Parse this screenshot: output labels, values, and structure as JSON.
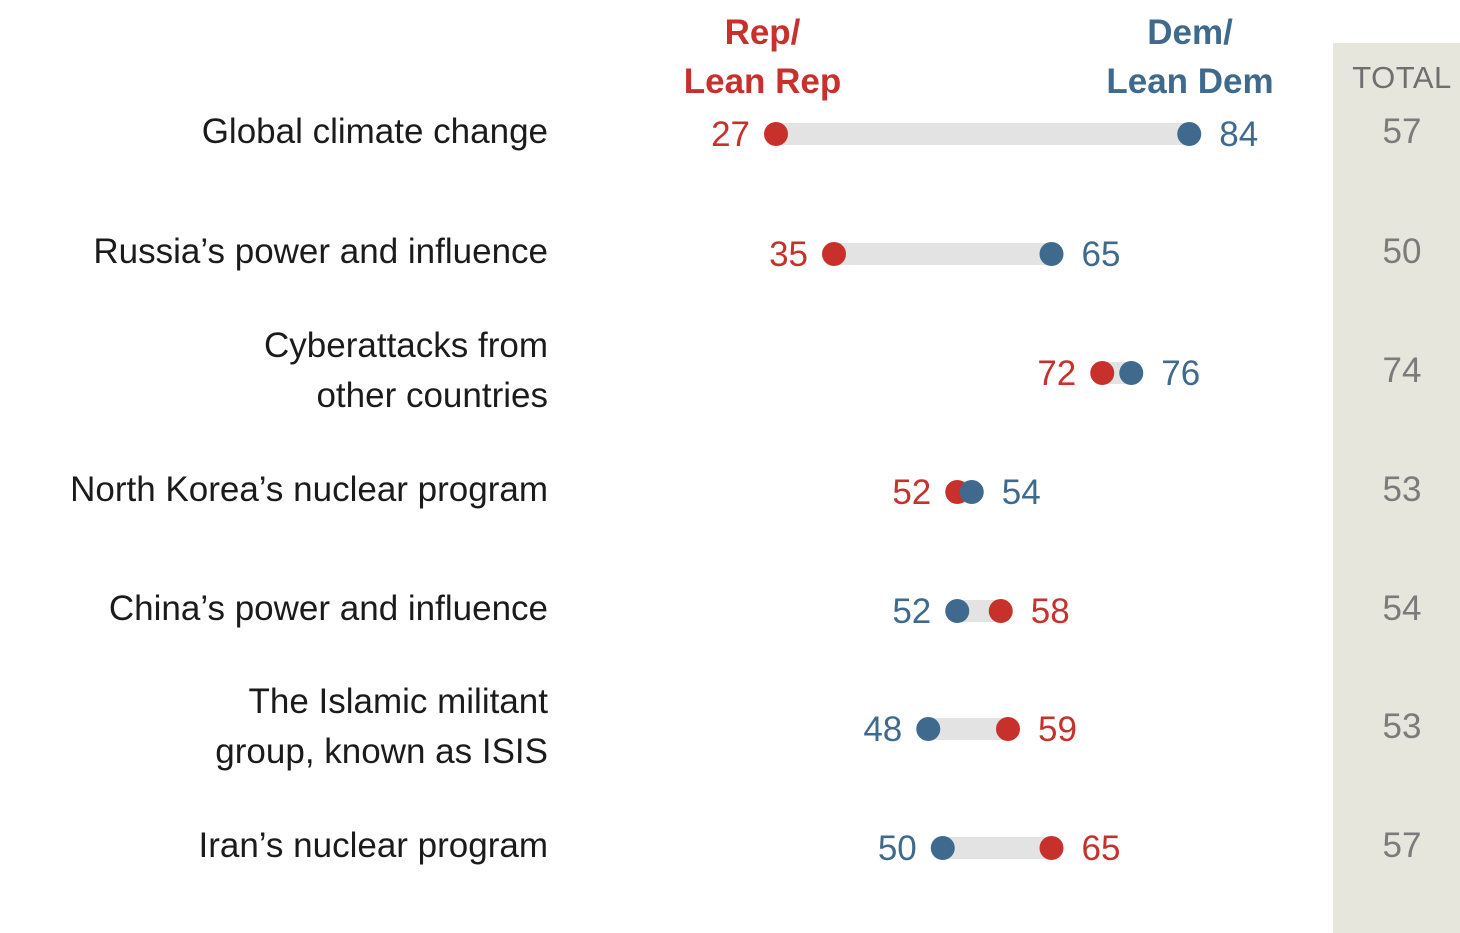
{
  "header": {
    "rep_label": [
      "Rep/",
      "Lean Rep"
    ],
    "dem_label": [
      "Dem/",
      "Lean Dem"
    ],
    "total_label": "TOTAL"
  },
  "colors": {
    "rep": "#c8312b",
    "dem": "#3f6a8e",
    "connector": "#e3e3e3",
    "total_bg": "#e7e6dd"
  },
  "chart_data": {
    "type": "dot-plot",
    "categories": [
      [
        "Global climate change"
      ],
      [
        "Russia’s power and influence"
      ],
      [
        "Cyberattacks from",
        "other countries"
      ],
      [
        "North Korea’s nuclear program"
      ],
      [
        "China’s power and influence"
      ],
      [
        "The Islamic militant",
        "group, known as ISIS"
      ],
      [
        "Iran’s nuclear program"
      ]
    ],
    "series": [
      {
        "name": "Rep/Lean Rep",
        "values": [
          27,
          35,
          72,
          52,
          58,
          59,
          65
        ]
      },
      {
        "name": "Dem/Lean Dem",
        "values": [
          84,
          65,
          76,
          54,
          52,
          48,
          50
        ]
      }
    ],
    "totals": [
      57,
      50,
      74,
      53,
      54,
      53,
      57
    ],
    "xlim": [
      0,
      100
    ],
    "grid": false,
    "legend": "top"
  }
}
